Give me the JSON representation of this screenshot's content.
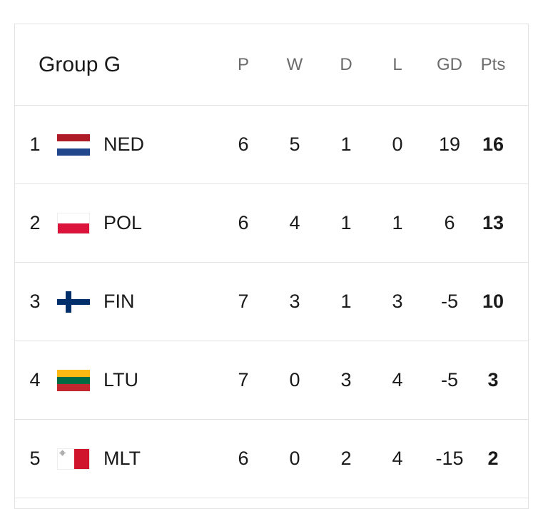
{
  "group_title": "Group G",
  "columns": [
    "P",
    "W",
    "D",
    "L",
    "GD",
    "Pts"
  ],
  "rows": [
    {
      "rank": "1",
      "code": "NED",
      "flag": "netherlands-flag",
      "P": "6",
      "W": "5",
      "D": "1",
      "L": "0",
      "GD": "19",
      "Pts": "16"
    },
    {
      "rank": "2",
      "code": "POL",
      "flag": "poland-flag",
      "P": "6",
      "W": "4",
      "D": "1",
      "L": "1",
      "GD": "6",
      "Pts": "13"
    },
    {
      "rank": "3",
      "code": "FIN",
      "flag": "finland-flag",
      "P": "7",
      "W": "3",
      "D": "1",
      "L": "3",
      "GD": "-5",
      "Pts": "10"
    },
    {
      "rank": "4",
      "code": "LTU",
      "flag": "lithuania-flag",
      "P": "7",
      "W": "0",
      "D": "3",
      "L": "4",
      "GD": "-5",
      "Pts": "3"
    },
    {
      "rank": "5",
      "code": "MLT",
      "flag": "malta-flag",
      "P": "6",
      "W": "0",
      "D": "2",
      "L": "4",
      "GD": "-15",
      "Pts": "2"
    }
  ],
  "colors": {
    "netherlands": [
      "#ae1c28",
      "#ffffff",
      "#21468b"
    ],
    "poland": [
      "#ffffff",
      "#dc143c"
    ],
    "finland": [
      "#ffffff",
      "#002f6c"
    ],
    "lithuania": [
      "#fdb913",
      "#006a44",
      "#c1272d"
    ],
    "malta": [
      "#ffffff",
      "#cf142b"
    ],
    "border": "#e3e3e3",
    "header_text": "#6b6b6b"
  }
}
